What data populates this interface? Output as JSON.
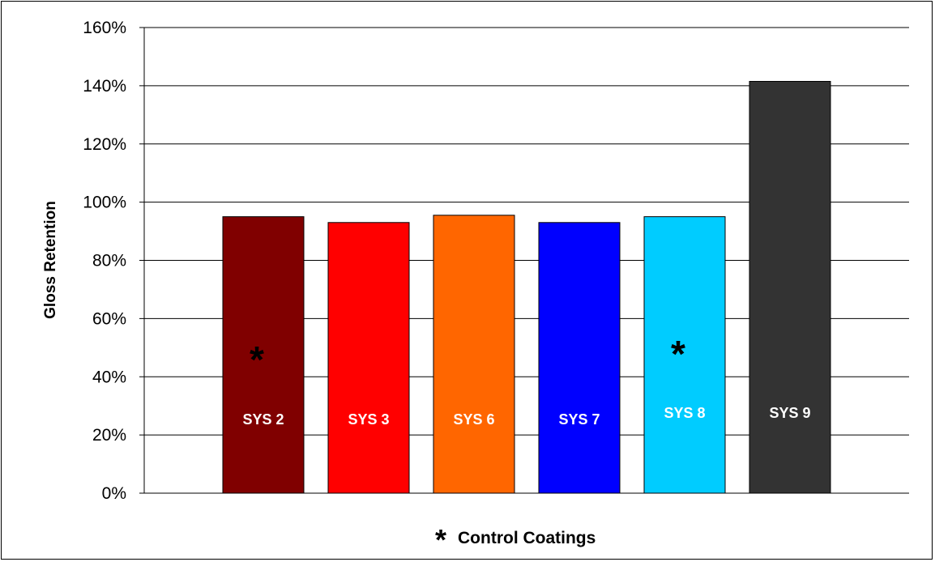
{
  "chart_data": {
    "type": "bar",
    "categories": [
      "SYS 2",
      "SYS 3",
      "SYS 6",
      "SYS 7",
      "SYS 8",
      "SYS 9"
    ],
    "values": [
      95,
      93,
      95.5,
      93,
      95,
      141.5
    ],
    "colors": [
      "#800000",
      "#ff0000",
      "#ff6600",
      "#0000ff",
      "#00ccff",
      "#333333"
    ],
    "control_marker": "*",
    "control_flags": [
      true,
      false,
      false,
      false,
      true,
      false
    ],
    "ylabel": "Gloss Retention",
    "xlabel": "",
    "ylim": [
      0,
      160
    ],
    "ytick_step": 20,
    "ytick_format": "percent",
    "grid": true,
    "footnote": {
      "marker": "*",
      "text": "Control Coatings"
    }
  }
}
